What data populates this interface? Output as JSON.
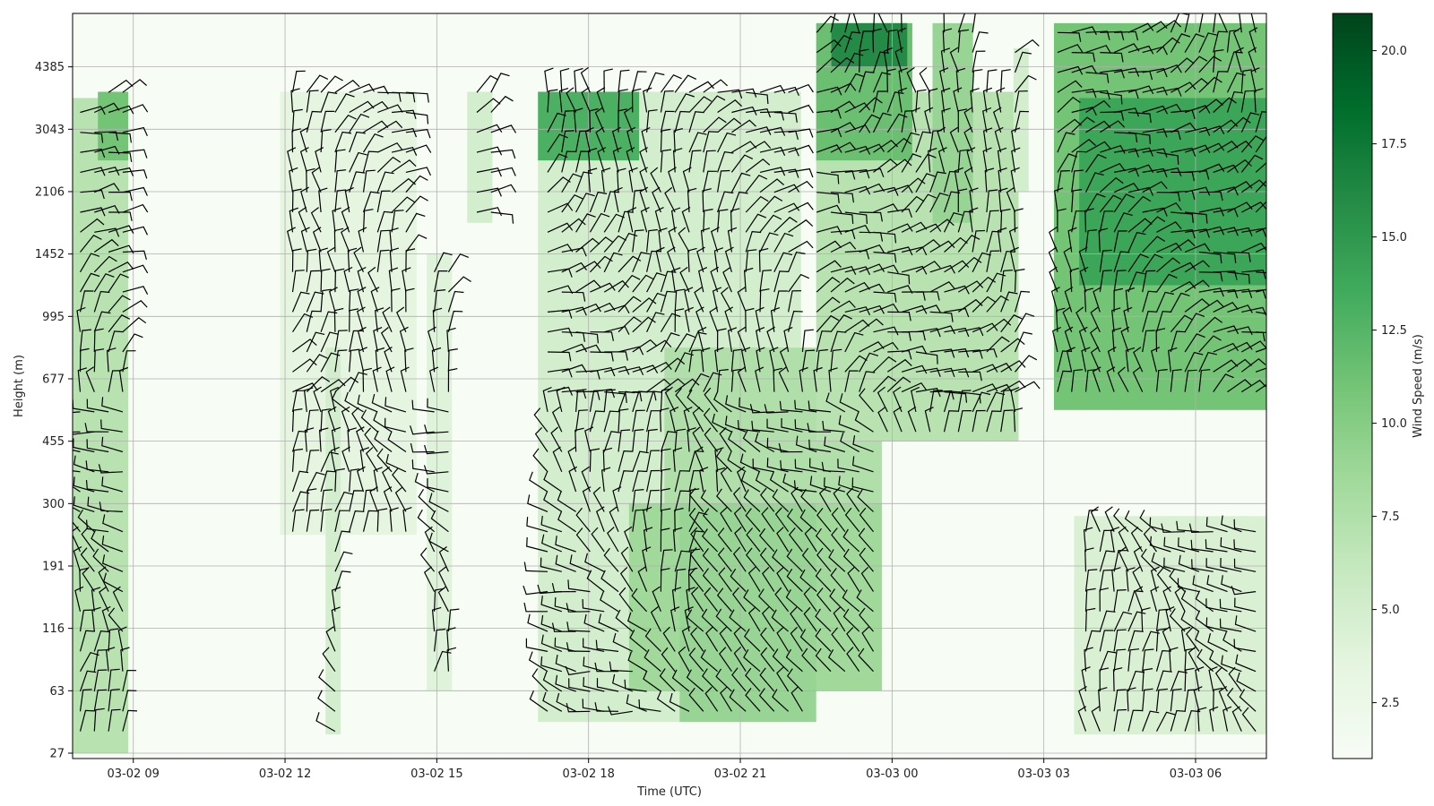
{
  "chart_data": {
    "type": "heatmap",
    "title": "",
    "xlabel": "Time (UTC)",
    "ylabel": "Height (m)",
    "x_ticks": [
      "03-02 09",
      "03-02 12",
      "03-02 15",
      "03-02 18",
      "03-02 21",
      "03-03 00",
      "03-03 03",
      "03-03 06"
    ],
    "x_tick_hours": [
      9,
      12,
      15,
      18,
      21,
      24,
      27,
      30
    ],
    "x_range_hours": [
      7.8,
      31.4
    ],
    "y_ticks": [
      "27",
      "63",
      "116",
      "191",
      "300",
      "455",
      "677",
      "995",
      "1452",
      "2106",
      "3043",
      "4385"
    ],
    "colorbar": {
      "label": "Wind Speed (m/s)",
      "ticks": [
        "2.5",
        "5.0",
        "7.5",
        "10.0",
        "12.5",
        "15.0",
        "17.5",
        "20.0"
      ],
      "tick_values": [
        2.5,
        5.0,
        7.5,
        10.0,
        12.5,
        15.0,
        17.5,
        20.0
      ],
      "range": [
        1.0,
        21.0
      ],
      "colormap": "Greens",
      "color_low": "#f7fcf5",
      "color_high": "#00441b"
    },
    "grid": true,
    "overlay": "wind barbs",
    "regions": [
      {
        "t0": 7.8,
        "t1": 8.9,
        "level_lo": 0,
        "level_hi": 10.5,
        "speed": 7.0
      },
      {
        "t0": 8.3,
        "t1": 8.9,
        "level_lo": 9.5,
        "level_hi": 10.6,
        "speed": 11.0
      },
      {
        "t0": 11.9,
        "t1": 14.6,
        "level_lo": 3.5,
        "level_hi": 10.6,
        "speed": 3.5
      },
      {
        "t0": 12.8,
        "t1": 13.1,
        "level_lo": 0.3,
        "level_hi": 6.5,
        "speed": 5.0
      },
      {
        "t0": 14.8,
        "t1": 15.3,
        "level_lo": 1.0,
        "level_hi": 8.0,
        "speed": 4.0
      },
      {
        "t0": 15.6,
        "t1": 16.1,
        "level_lo": 8.5,
        "level_hi": 10.6,
        "speed": 5.0
      },
      {
        "t0": 17.0,
        "t1": 22.2,
        "level_lo": 0.5,
        "level_hi": 10.6,
        "speed": 5.0
      },
      {
        "t0": 17.0,
        "t1": 19.0,
        "level_lo": 9.5,
        "level_hi": 10.6,
        "speed": 13.0
      },
      {
        "t0": 18.8,
        "t1": 23.8,
        "level_lo": 1.0,
        "level_hi": 4.0,
        "speed": 8.5
      },
      {
        "t0": 19.8,
        "t1": 22.5,
        "level_lo": 0.5,
        "level_hi": 4.0,
        "speed": 9.0
      },
      {
        "t0": 19.5,
        "t1": 23.8,
        "level_lo": 4.0,
        "level_hi": 6.5,
        "speed": 7.5
      },
      {
        "t0": 22.5,
        "t1": 26.5,
        "level_lo": 5.0,
        "level_hi": 10.6,
        "speed": 7.0
      },
      {
        "t0": 22.5,
        "t1": 24.4,
        "level_lo": 9.5,
        "level_hi": 11.7,
        "speed": 11.5
      },
      {
        "t0": 22.8,
        "t1": 24.3,
        "level_lo": 11.0,
        "level_hi": 11.7,
        "speed": 16.0
      },
      {
        "t0": 24.8,
        "t1": 25.6,
        "level_lo": 8.5,
        "level_hi": 11.7,
        "speed": 9.0
      },
      {
        "t0": 26.4,
        "t1": 26.7,
        "level_lo": 9.0,
        "level_hi": 11.3,
        "speed": 5.0
      },
      {
        "t0": 27.2,
        "t1": 31.4,
        "level_lo": 5.5,
        "level_hi": 11.7,
        "speed": 11.0
      },
      {
        "t0": 27.7,
        "t1": 31.4,
        "level_lo": 7.5,
        "level_hi": 10.5,
        "speed": 14.0
      },
      {
        "t0": 27.6,
        "t1": 31.4,
        "level_lo": 0.3,
        "level_hi": 3.8,
        "speed": 4.5
      }
    ]
  },
  "colors": {
    "barb": "#000000",
    "grid": "#b0b0b0",
    "axis": "#000000"
  }
}
